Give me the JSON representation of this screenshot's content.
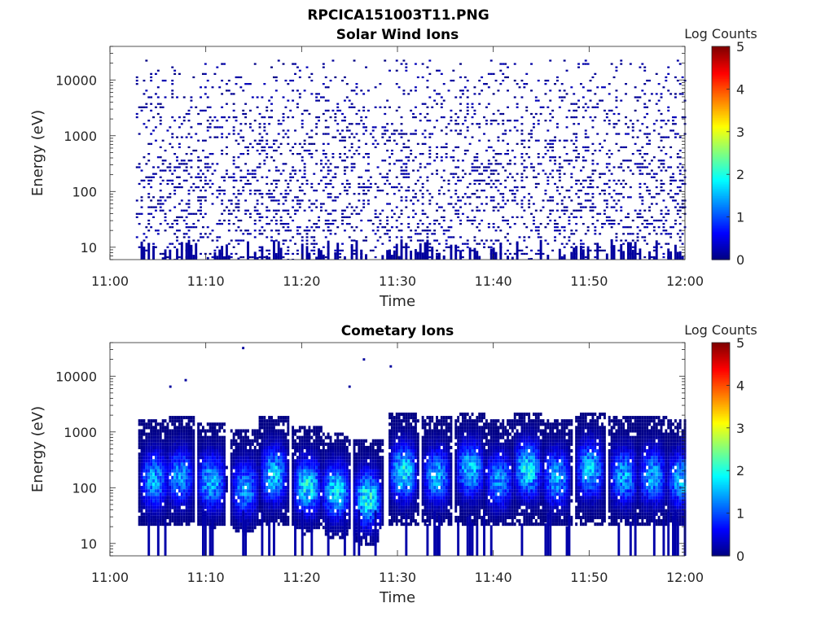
{
  "figure": {
    "filename": "RPCICA151003T11.PNG"
  },
  "chart_data": [
    {
      "type": "heatmap",
      "title": "Solar Wind Ions",
      "xlabel": "Time",
      "ylabel": "Energy (eV)",
      "xticks": [
        "11:00",
        "11:10",
        "11:20",
        "11:30",
        "11:40",
        "11:50",
        "12:00"
      ],
      "xlim_minutes": [
        0,
        60
      ],
      "yscale": "log",
      "ylim": [
        6,
        40000
      ],
      "yticks": [
        10,
        100,
        1000,
        10000
      ],
      "ytick_labels": [
        "10",
        "100",
        "1000",
        "10000"
      ],
      "colorbar": {
        "label": "Log Counts",
        "ticks": [
          "0",
          "1",
          "2",
          "3",
          "4",
          "5"
        ],
        "range": [
          0,
          5
        ],
        "colormap": "jet"
      },
      "data_start_minute": 2.7,
      "data_end_minute": 60,
      "max_log_counts": 0.3,
      "description_of_structure": "sparse single-count pixels spread 6 eV to ~20 keV, denser below 300 eV"
    },
    {
      "type": "heatmap",
      "title": "Cometary Ions",
      "xlabel": "Time",
      "ylabel": "Energy (eV)",
      "xticks": [
        "11:00",
        "11:10",
        "11:20",
        "11:30",
        "11:40",
        "11:50",
        "12:00"
      ],
      "xlim_minutes": [
        0,
        60
      ],
      "yscale": "log",
      "ylim": [
        6,
        40000
      ],
      "yticks": [
        10,
        100,
        1000,
        10000
      ],
      "ytick_labels": [
        "10",
        "100",
        "1000",
        "10000"
      ],
      "colorbar": {
        "label": "Log Counts",
        "ticks": [
          "0",
          "1",
          "2",
          "3",
          "4",
          "5"
        ],
        "range": [
          0,
          5
        ],
        "colormap": "jet"
      },
      "data_start_minute": 2.7,
      "data_end_minute": 60,
      "bursts": [
        {
          "center_min": 4.5,
          "peak_energy_ev": 130,
          "peak_log": 1.6
        },
        {
          "center_min": 7.2,
          "peak_energy_ev": 150,
          "peak_log": 1.5
        },
        {
          "center_min": 10.5,
          "peak_energy_ev": 120,
          "peak_log": 1.7
        },
        {
          "center_min": 14.0,
          "peak_energy_ev": 90,
          "peak_log": 1.5
        },
        {
          "center_min": 17.0,
          "peak_energy_ev": 160,
          "peak_log": 1.8
        },
        {
          "center_min": 20.5,
          "peak_energy_ev": 100,
          "peak_log": 2.0
        },
        {
          "center_min": 23.5,
          "peak_energy_ev": 80,
          "peak_log": 2.0
        },
        {
          "center_min": 26.8,
          "peak_energy_ev": 60,
          "peak_log": 2.1
        },
        {
          "center_min": 30.5,
          "peak_energy_ev": 180,
          "peak_log": 2.0
        },
        {
          "center_min": 34.0,
          "peak_energy_ev": 150,
          "peak_log": 1.6
        },
        {
          "center_min": 37.5,
          "peak_energy_ev": 200,
          "peak_log": 1.8
        },
        {
          "center_min": 40.5,
          "peak_energy_ev": 130,
          "peak_log": 1.5
        },
        {
          "center_min": 43.5,
          "peak_energy_ev": 200,
          "peak_log": 2.0
        },
        {
          "center_min": 46.5,
          "peak_energy_ev": 140,
          "peak_log": 1.6
        },
        {
          "center_min": 50.0,
          "peak_energy_ev": 200,
          "peak_log": 1.8
        },
        {
          "center_min": 53.5,
          "peak_energy_ev": 150,
          "peak_log": 1.6
        },
        {
          "center_min": 56.5,
          "peak_energy_ev": 150,
          "peak_log": 1.6
        },
        {
          "center_min": 59.5,
          "peak_energy_ev": 130,
          "peak_log": 1.6
        }
      ],
      "outlier_points": [
        {
          "minute": 6.3,
          "energy_ev": 6500
        },
        {
          "minute": 7.9,
          "energy_ev": 8500
        },
        {
          "minute": 13.9,
          "energy_ev": 32000
        },
        {
          "minute": 25.0,
          "energy_ev": 6500
        },
        {
          "minute": 26.5,
          "energy_ev": 20000
        },
        {
          "minute": 29.3,
          "energy_ev": 15000
        }
      ]
    }
  ]
}
